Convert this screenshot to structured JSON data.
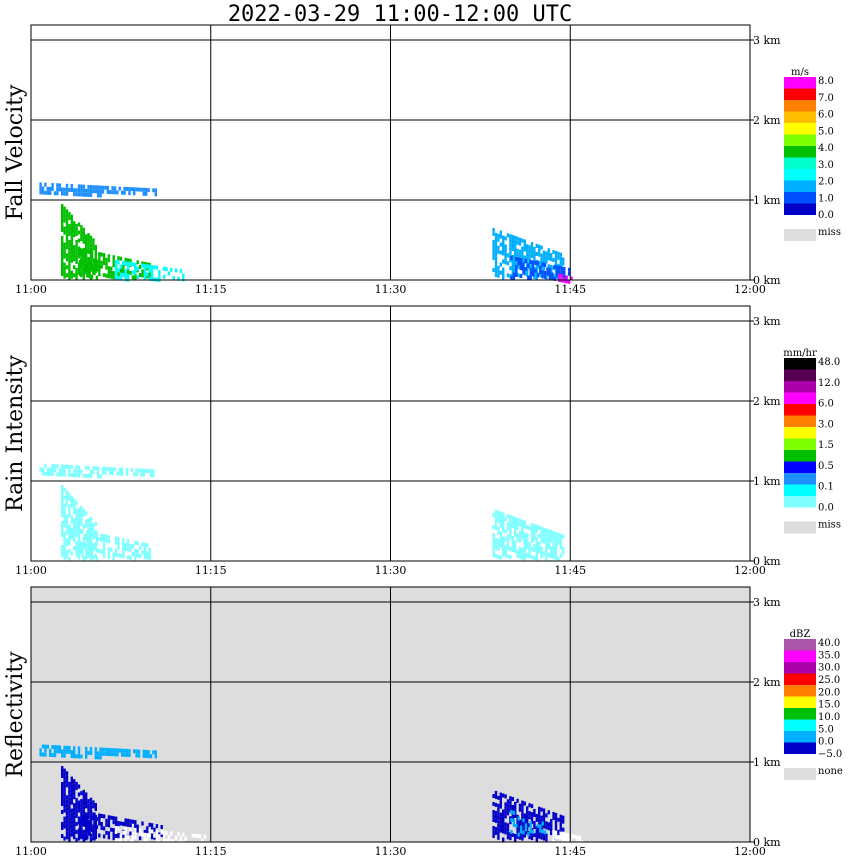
{
  "title": "2022-03-29   11:00-12:00 UTC",
  "chart_data": [
    {
      "type": "heatmap",
      "title": "Fall Velocity",
      "x_ticks": [
        "11:00",
        "11:15",
        "11:30",
        "11:45",
        "12:00"
      ],
      "y_ticks": [
        "0 km",
        "1 km",
        "2 km",
        "3 km"
      ],
      "xlim": [
        "11:00",
        "12:00"
      ],
      "ylim_km": [
        0,
        3.2
      ],
      "grid": true,
      "legend": {
        "unit": "m/s",
        "labels": [
          "8.0",
          "7.0",
          "6.0",
          "5.0",
          "4.0",
          "3.0",
          "2.0",
          "1.0",
          "0.0"
        ],
        "missing_label": "miss",
        "colors": [
          "#ff00ff",
          "#ff0000",
          "#ff7f00",
          "#ffbf00",
          "#ffff00",
          "#7fff00",
          "#00bf00",
          "#00ffcc",
          "#00ffff",
          "#00afff",
          "#0050ff",
          "#0000c8"
        ],
        "missing_color": "#dddddd"
      },
      "blobs": [
        {
          "t0": 0.7,
          "t1": 10.5,
          "h0": 1.08,
          "h1": 1.22,
          "color": "#1e90ff",
          "density": 0.75
        },
        {
          "t0": 2.5,
          "t1": 5.5,
          "h0": 0.05,
          "h1": 0.95,
          "color": "#00bf00",
          "density": 0.8
        },
        {
          "t0": 4.0,
          "t1": 10.0,
          "h0": 0.05,
          "h1": 0.4,
          "color": "#00bf00",
          "density": 0.6
        },
        {
          "t0": 7.0,
          "t1": 13.0,
          "h0": 0.02,
          "h1": 0.25,
          "color": "#00ffff",
          "density": 0.6
        },
        {
          "t0": 38.5,
          "t1": 44.5,
          "h0": 0.05,
          "h1": 0.65,
          "color": "#00afff",
          "density": 0.7
        },
        {
          "t0": 40.0,
          "t1": 45.0,
          "h0": 0.02,
          "h1": 0.3,
          "color": "#0050ff",
          "density": 0.6
        },
        {
          "t0": 44.0,
          "t1": 45.2,
          "h0": 0.0,
          "h1": 0.08,
          "color": "#ff00ff",
          "density": 0.9
        }
      ]
    },
    {
      "type": "heatmap",
      "title": "Rain Intensity",
      "x_ticks": [
        "11:00",
        "11:15",
        "11:30",
        "11:45",
        "12:00"
      ],
      "y_ticks": [
        "0 km",
        "1 km",
        "2 km",
        "3 km"
      ],
      "xlim": [
        "11:00",
        "12:00"
      ],
      "ylim_km": [
        0,
        3.2
      ],
      "grid": true,
      "legend": {
        "unit": "mm/hr",
        "labels": [
          "48.0",
          "12.0",
          "6.0",
          "3.0",
          "1.5",
          "0.5",
          "0.1",
          "0.0"
        ],
        "missing_label": "miss",
        "colors": [
          "#000000",
          "#550055",
          "#aa00aa",
          "#ff00ff",
          "#ff0000",
          "#ff7f00",
          "#ffff00",
          "#7fff00",
          "#00bf00",
          "#0000ff",
          "#1e90ff",
          "#00ffff",
          "#7fffff"
        ],
        "missing_color": "#dddddd"
      },
      "blobs": [
        {
          "t0": 0.7,
          "t1": 10.5,
          "h0": 1.08,
          "h1": 1.22,
          "color": "#7fffff",
          "density": 0.7
        },
        {
          "t0": 2.5,
          "t1": 5.5,
          "h0": 0.05,
          "h1": 0.95,
          "color": "#7fffff",
          "density": 0.75
        },
        {
          "t0": 4.0,
          "t1": 10.0,
          "h0": 0.05,
          "h1": 0.4,
          "color": "#7fffff",
          "density": 0.6
        },
        {
          "t0": 38.5,
          "t1": 44.5,
          "h0": 0.05,
          "h1": 0.65,
          "color": "#7fffff",
          "density": 0.75
        }
      ]
    },
    {
      "type": "heatmap",
      "title": "Reflectivity",
      "x_ticks": [
        "11:00",
        "11:15",
        "11:30",
        "11:45",
        "12:00"
      ],
      "y_ticks": [
        "0 km",
        "1 km",
        "2 km",
        "3 km"
      ],
      "xlim": [
        "11:00",
        "12:00"
      ],
      "ylim_km": [
        0,
        3.2
      ],
      "grid": true,
      "background": "#dddddd",
      "legend": {
        "unit": "dBZ",
        "labels": [
          "40.0",
          "35.0",
          "30.0",
          "25.0",
          "20.0",
          "15.0",
          "10.0",
          "5.0",
          "0.0",
          "−5.0"
        ],
        "missing_label": "none",
        "colors": [
          "#aa55aa",
          "#ff00ff",
          "#aa00aa",
          "#ff0000",
          "#ff7f00",
          "#ffff00",
          "#00bf00",
          "#00ffff",
          "#00afff",
          "#0000c8"
        ],
        "missing_color": "#dddddd"
      },
      "blobs": [
        {
          "t0": 0.7,
          "t1": 10.5,
          "h0": 1.08,
          "h1": 1.22,
          "color": "#00afff",
          "density": 0.75
        },
        {
          "t0": 2.5,
          "t1": 5.5,
          "h0": 0.05,
          "h1": 0.95,
          "color": "#0000c8",
          "density": 0.8
        },
        {
          "t0": 4.0,
          "t1": 11.0,
          "h0": 0.05,
          "h1": 0.4,
          "color": "#0000c8",
          "density": 0.6
        },
        {
          "t0": 7.0,
          "t1": 14.5,
          "h0": 0.0,
          "h1": 0.2,
          "color": "#ffffff",
          "density": 0.6
        },
        {
          "t0": 38.5,
          "t1": 44.5,
          "h0": 0.05,
          "h1": 0.65,
          "color": "#0000c8",
          "density": 0.75
        },
        {
          "t0": 40.0,
          "t1": 43.0,
          "h0": 0.1,
          "h1": 0.4,
          "color": "#00afff",
          "density": 0.5
        },
        {
          "t0": 43.5,
          "t1": 46.0,
          "h0": 0.0,
          "h1": 0.15,
          "color": "#ffffff",
          "density": 0.6
        }
      ]
    }
  ]
}
